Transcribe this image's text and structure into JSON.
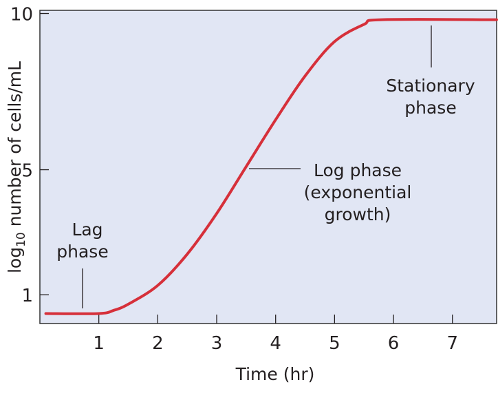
{
  "chart_data": {
    "type": "line",
    "title": "",
    "xlabel": "Time (hr)",
    "ylabel": {
      "prefix": "log",
      "subscript": "10",
      "suffix": " number of cells/mL"
    },
    "xlim": [
      0,
      7.75
    ],
    "ylim": [
      0.08,
      10.1
    ],
    "xticks": [
      1,
      2,
      3,
      4,
      5,
      6,
      7
    ],
    "xtick_labels": [
      "1",
      "2",
      "3",
      "4",
      "5",
      "6",
      "7"
    ],
    "yticks": [
      1,
      5,
      10
    ],
    "ytick_labels": [
      "1",
      "5",
      "10"
    ],
    "grid": false,
    "series": [
      {
        "name": "Bacterial growth curve",
        "color": "#d6303a",
        "x": [
          0.1,
          1.0,
          1.25,
          1.5,
          2.0,
          2.5,
          3.0,
          3.5,
          4.0,
          4.5,
          5.0,
          5.5,
          5.8,
          7.75
        ],
        "y": [
          0.4,
          0.4,
          0.5,
          0.7,
          1.3,
          2.3,
          3.6,
          5.1,
          6.6,
          8.0,
          9.1,
          9.65,
          9.8,
          9.8
        ]
      }
    ],
    "annotations": [
      {
        "lines": [
          "Lag",
          "phase"
        ],
        "x": 0.7,
        "y": 0.4
      },
      {
        "lines": [
          "Log phase",
          "(exponential",
          "growth)"
        ],
        "x": 3.5,
        "y": 5
      },
      {
        "lines": [
          "Stationary",
          "phase"
        ],
        "x": 6.65,
        "y": 9.8
      }
    ],
    "background": "#e1e6f4"
  }
}
